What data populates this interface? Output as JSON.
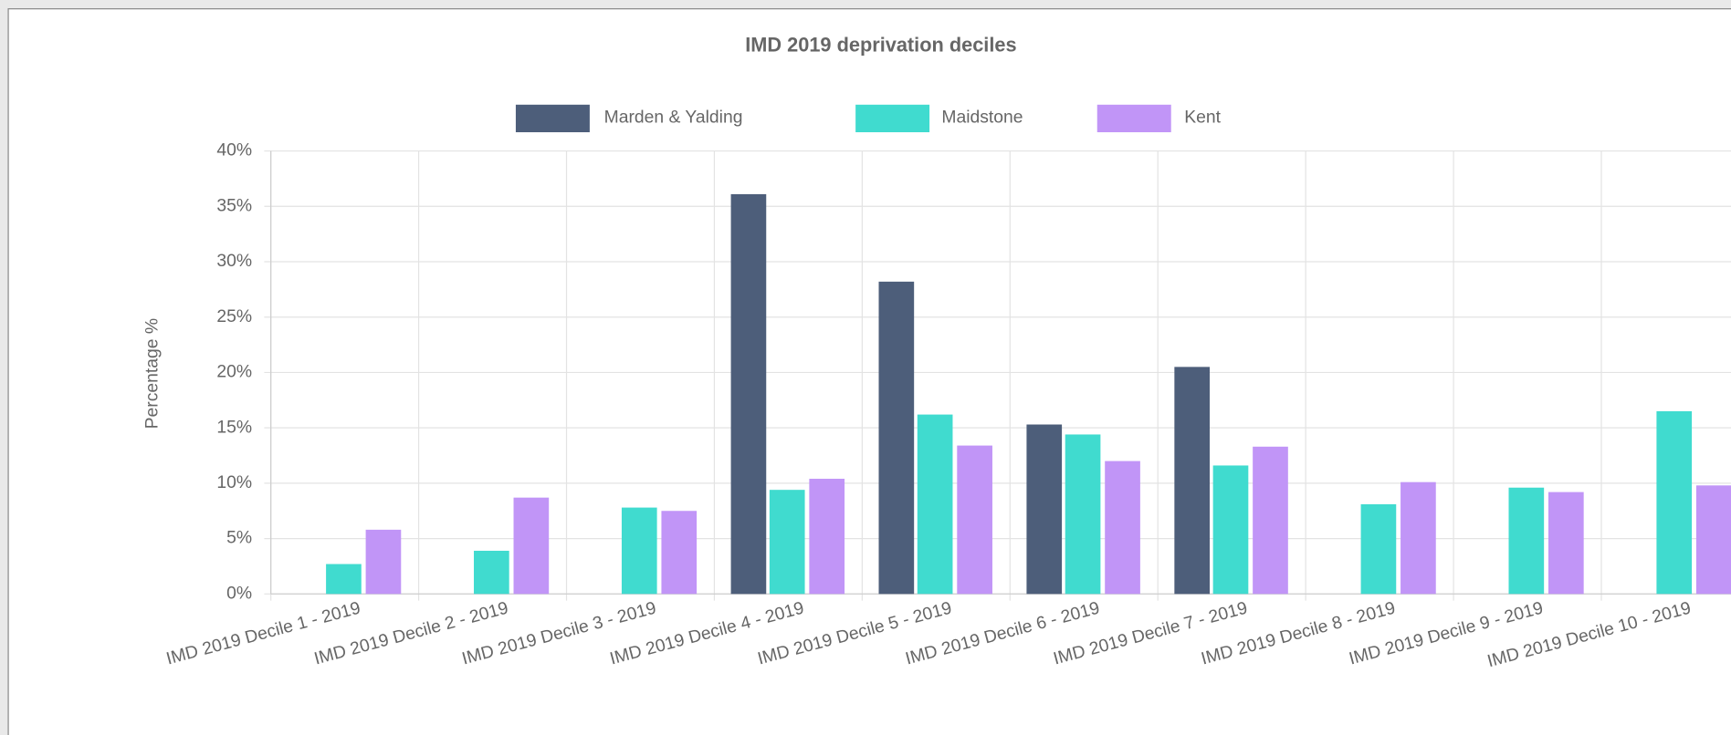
{
  "chart_data": {
    "type": "bar",
    "title": "IMD 2019 deprivation deciles",
    "y_label": "Percentage %",
    "categories": [
      "IMD 2019 Decile 1 - 2019",
      "IMD 2019 Decile 2 - 2019",
      "IMD 2019 Decile 3 - 2019",
      "IMD 2019 Decile 4 - 2019",
      "IMD 2019 Decile 5 - 2019",
      "IMD 2019 Decile 6 - 2019",
      "IMD 2019 Decile 7 - 2019",
      "IMD 2019 Decile 8 - 2019",
      "IMD 2019 Decile 9 - 2019",
      "IMD 2019 Decile 10 - 2019"
    ],
    "series": [
      {
        "name": "Marden & Yalding",
        "color": "#4d5e7a",
        "values": [
          0,
          0,
          0,
          36.1,
          28.2,
          15.3,
          20.5,
          0,
          0,
          0
        ]
      },
      {
        "name": "Maidstone",
        "color": "#40dbcf",
        "values": [
          2.7,
          3.9,
          7.8,
          9.4,
          16.2,
          14.4,
          11.6,
          8.1,
          9.6,
          16.5
        ]
      },
      {
        "name": "Kent",
        "color": "#c195f7",
        "values": [
          5.8,
          8.7,
          7.5,
          10.4,
          13.4,
          12.0,
          13.3,
          10.1,
          9.2,
          9.8
        ]
      }
    ],
    "ylim": [
      0,
      40
    ],
    "yticks": [
      {
        "value": 0,
        "label": "0%"
      },
      {
        "value": 5,
        "label": "5%"
      },
      {
        "value": 10,
        "label": "10%"
      },
      {
        "value": 15,
        "label": "15%"
      },
      {
        "value": 20,
        "label": "20%"
      },
      {
        "value": 25,
        "label": "25%"
      },
      {
        "value": 30,
        "label": "30%"
      },
      {
        "value": 35,
        "label": "35%"
      },
      {
        "value": 40,
        "label": "40%"
      }
    ],
    "grid": true,
    "legend": "top"
  }
}
